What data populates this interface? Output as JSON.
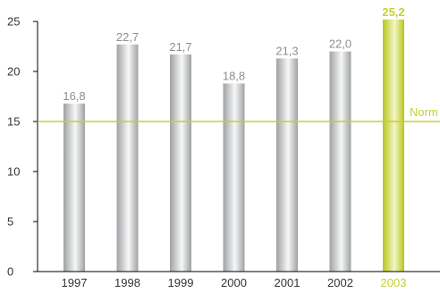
{
  "chart_data": {
    "type": "bar",
    "categories": [
      "1997",
      "1998",
      "1999",
      "2000",
      "2001",
      "2002",
      "2003"
    ],
    "values": [
      16.8,
      22.7,
      21.7,
      18.8,
      21.3,
      22.0,
      25.2
    ],
    "value_labels": [
      "16,8",
      "22,7",
      "21,7",
      "18,8",
      "21,3",
      "22,0",
      "25,2"
    ],
    "highlight_index": 6,
    "ylim": [
      0,
      25
    ],
    "y_ticks": [
      0,
      5,
      10,
      15,
      20,
      25
    ],
    "y_tick_labels": [
      "0",
      "5",
      "10",
      "15",
      "20",
      "25"
    ],
    "reference_line": {
      "value": 15,
      "label": "Norm"
    },
    "title": "",
    "xlabel": "",
    "ylabel": "",
    "grid": false,
    "colors": {
      "bar_gray_dark": "#9fa1a4",
      "bar_gray_light": "#f7f8f8",
      "bar_green_dark": "#b7c61c",
      "bar_green_light": "#f3f6c5",
      "norm_line": "#c5d033",
      "label_gray": "#8c8e91",
      "label_green": "#c5d033",
      "axis_label": "#333333"
    }
  }
}
